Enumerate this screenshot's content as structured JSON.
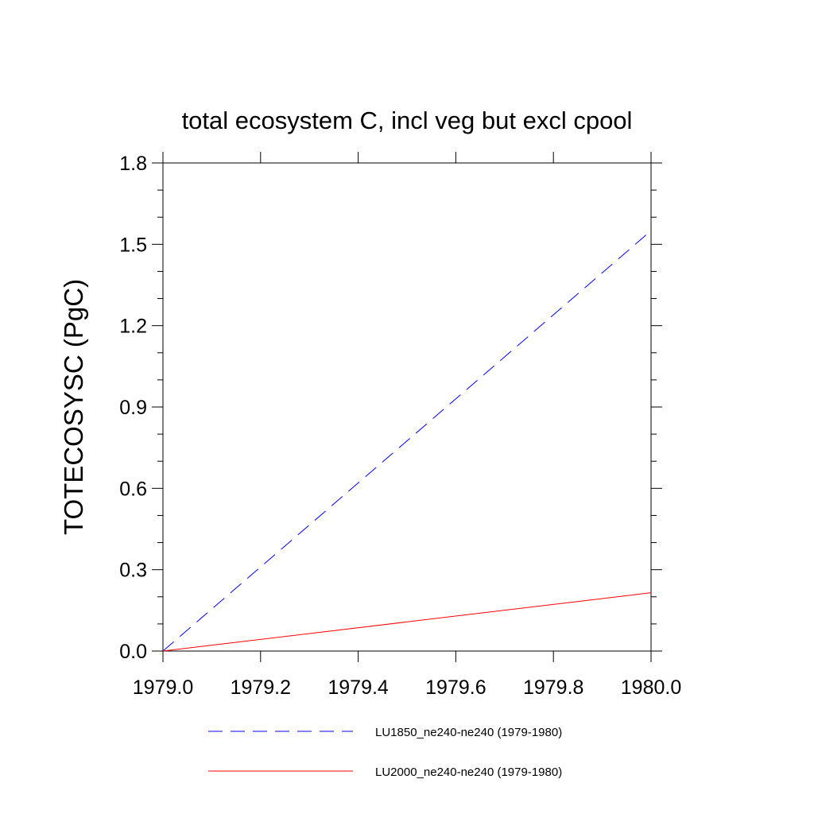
{
  "chart_data": {
    "type": "line",
    "title": "total ecosystem C, incl veg but excl cpool",
    "xlabel": "",
    "ylabel": "TOTECOSYSC  (PgC)",
    "xlim": [
      1979.0,
      1980.0
    ],
    "ylim": [
      0.0,
      1.8
    ],
    "x_ticks": [
      "1979.0",
      "1979.2",
      "1979.4",
      "1979.6",
      "1979.8",
      "1980.0"
    ],
    "y_ticks": [
      "0.0",
      "0.3",
      "0.6",
      "0.9",
      "1.2",
      "1.5",
      "1.8"
    ],
    "grid": false,
    "legend_position": "bottom",
    "series": [
      {
        "name": "LU1850_ne240-ne240 (1979-1980)",
        "color": "#0000ff",
        "line_style": "dashed",
        "x": [
          1979.0,
          1980.0
        ],
        "y": [
          0.0,
          1.55
        ]
      },
      {
        "name": "LU2000_ne240-ne240 (1979-1980)",
        "color": "#ff0000",
        "line_style": "solid",
        "x": [
          1979.0,
          1980.0
        ],
        "y": [
          0.0,
          0.215
        ]
      }
    ]
  }
}
